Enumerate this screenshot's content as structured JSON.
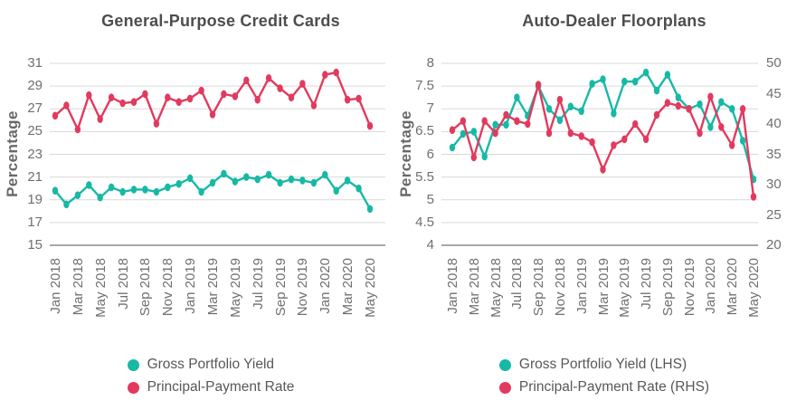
{
  "colors": {
    "teal": "#17B9A5",
    "red": "#E23A5F",
    "title_text": "#4D4D4D",
    "tick_text": "#6F6F6F",
    "legend_text": "#585858",
    "gridline": "#D9D9D9",
    "axis_line": "#8C8C8C",
    "background": "#FFFFFF"
  },
  "chart_data": [
    {
      "type": "line",
      "title": "General-Purpose Credit Cards",
      "ylabel": "Percentage",
      "grid": true,
      "legend_position": "bottom",
      "x_tick_step": 2,
      "x_tick_labels": [
        "Jan 2018",
        "Mar 2018",
        "May 2018",
        "Jul 2018",
        "Sep 2018",
        "Nov 2018",
        "Jan 2019",
        "Mar 2019",
        "May 2019",
        "Jul 2019",
        "Sep 2019",
        "Nov 2019",
        "Jan 2020",
        "Mar 2020",
        "May 2020"
      ],
      "months": [
        "Jan 2018",
        "Feb 2018",
        "Mar 2018",
        "Apr 2018",
        "May 2018",
        "Jun 2018",
        "Jul 2018",
        "Aug 2018",
        "Sep 2018",
        "Oct 2018",
        "Nov 2018",
        "Dec 2018",
        "Jan 2019",
        "Feb 2019",
        "Mar 2019",
        "Apr 2019",
        "May 2019",
        "Jun 2019",
        "Jul 2019",
        "Aug 2019",
        "Sep 2019",
        "Oct 2019",
        "Nov 2019",
        "Dec 2019",
        "Jan 2020",
        "Feb 2020",
        "Mar 2020",
        "Apr 2020",
        "May 2020"
      ],
      "left_axis": {
        "min": 15,
        "max": 31,
        "ticks": [
          31,
          29,
          27,
          25,
          23,
          21,
          19,
          17,
          15
        ]
      },
      "series": [
        {
          "name": "Gross Portfolio Yield",
          "color_key": "teal",
          "axis": "left",
          "values": [
            19.8,
            18.6,
            19.4,
            20.3,
            19.2,
            20.1,
            19.7,
            19.9,
            19.9,
            19.7,
            20.1,
            20.4,
            20.9,
            19.7,
            20.5,
            21.3,
            20.6,
            21.0,
            20.8,
            21.2,
            20.5,
            20.8,
            20.7,
            20.5,
            21.2,
            19.8,
            20.7,
            20.0,
            18.2
          ]
        },
        {
          "name": "Principal-Payment Rate",
          "color_key": "red",
          "axis": "left",
          "values": [
            26.4,
            27.3,
            25.2,
            28.2,
            26.1,
            28.0,
            27.5,
            27.6,
            28.3,
            25.7,
            28.0,
            27.6,
            27.9,
            28.6,
            26.5,
            28.3,
            28.1,
            29.5,
            27.8,
            29.7,
            28.8,
            28.0,
            29.2,
            27.3,
            30.0,
            30.2,
            27.8,
            27.9,
            25.5
          ]
        }
      ]
    },
    {
      "type": "line",
      "title": "Auto-Dealer Floorplans",
      "ylabel": "Percentage",
      "grid": true,
      "legend_position": "bottom",
      "x_tick_step": 2,
      "x_tick_labels": [
        "Jan 2018",
        "Mar 2018",
        "May 2018",
        "Jul 2018",
        "Sep 2018",
        "Nov 2018",
        "Jan 2019",
        "Mar 2019",
        "May 2019",
        "Jul 2019",
        "Sep 2019",
        "Nov 2019",
        "Jan 2020",
        "Mar 2020",
        "May 2020"
      ],
      "months": [
        "Jan 2018",
        "Feb 2018",
        "Mar 2018",
        "Apr 2018",
        "May 2018",
        "Jun 2018",
        "Jul 2018",
        "Aug 2018",
        "Sep 2018",
        "Oct 2018",
        "Nov 2018",
        "Dec 2018",
        "Jan 2019",
        "Feb 2019",
        "Mar 2019",
        "Apr 2019",
        "May 2019",
        "Jun 2019",
        "Jul 2019",
        "Aug 2019",
        "Sep 2019",
        "Oct 2019",
        "Nov 2019",
        "Dec 2019",
        "Jan 2020",
        "Feb 2020",
        "Mar 2020",
        "Apr 2020",
        "May 2020"
      ],
      "left_axis": {
        "min": 4,
        "max": 8,
        "ticks": [
          8,
          7.5,
          7,
          6.5,
          6,
          5.5,
          5,
          4.5,
          4
        ]
      },
      "right_axis": {
        "min": 20,
        "max": 50,
        "ticks": [
          50,
          45,
          40,
          35,
          30,
          25,
          20
        ]
      },
      "series": [
        {
          "name": "Gross Portfolio Yield (LHS)",
          "color_key": "teal",
          "axis": "left",
          "values": [
            6.15,
            6.45,
            6.5,
            5.95,
            6.65,
            6.65,
            7.25,
            6.85,
            7.5,
            7.0,
            6.75,
            7.05,
            6.95,
            7.55,
            7.65,
            6.9,
            7.6,
            7.6,
            7.8,
            7.4,
            7.75,
            7.25,
            7.0,
            7.1,
            6.6,
            7.15,
            7.0,
            6.3,
            5.45
          ]
        },
        {
          "name": "Principal-Payment Rate (RHS)",
          "color_key": "red",
          "axis": "right",
          "values": [
            39,
            40.5,
            34.5,
            40.5,
            38.5,
            41.5,
            40.5,
            40,
            46.5,
            38.5,
            44,
            38.5,
            38,
            37,
            32.5,
            36.5,
            37.5,
            40,
            37.5,
            41.5,
            43.5,
            43,
            42.5,
            38.5,
            44.5,
            39.5,
            36.5,
            42.5,
            28
          ]
        }
      ]
    }
  ]
}
